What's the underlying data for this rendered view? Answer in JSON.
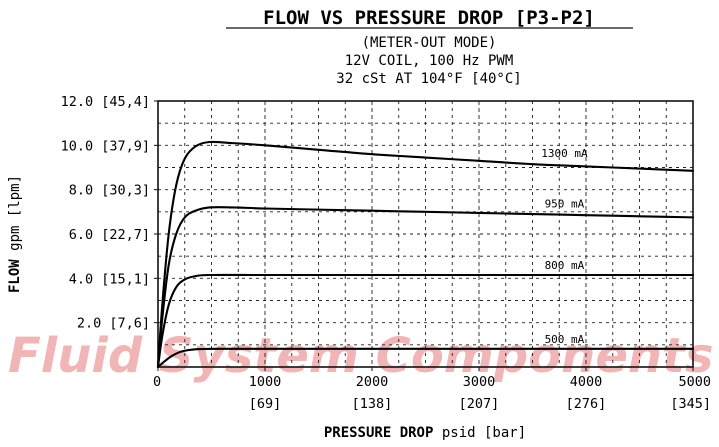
{
  "watermark": {
    "text": "Fluid System Components",
    "color": "#f2b5b5"
  },
  "chart_data": {
    "type": "line",
    "title": "FLOW VS PRESSURE DROP [P3-P2]",
    "subtitle": [
      "(METER-OUT MODE)",
      "12V COIL, 100 Hz PWM",
      "32 cSt AT 104°F [40°C]"
    ],
    "xlabel": {
      "bold": "PRESSURE DROP",
      "rest": " psid [bar]"
    },
    "ylabel": {
      "bold": "FLOW",
      "rest": " gpm [lpm]"
    },
    "xlim": [
      0,
      5000
    ],
    "ylim": [
      0,
      12.0
    ],
    "grid": true,
    "x_ticks": [
      {
        "value": 0,
        "label": "0",
        "sub": ""
      },
      {
        "value": 1000,
        "label": "1000",
        "sub": "[69]"
      },
      {
        "value": 2000,
        "label": "2000",
        "sub": "[138]"
      },
      {
        "value": 3000,
        "label": "3000",
        "sub": "[207]"
      },
      {
        "value": 4000,
        "label": "4000",
        "sub": "[276]"
      },
      {
        "value": 5000,
        "label": "5000",
        "sub": "[345]"
      }
    ],
    "y_ticks": [
      {
        "value": 2.0,
        "label": "2.0 [7,6]"
      },
      {
        "value": 4.0,
        "label": "4.0 [15,1]"
      },
      {
        "value": 6.0,
        "label": "6.0 [22,7]"
      },
      {
        "value": 8.0,
        "label": "8.0 [30,3]"
      },
      {
        "value": 10.0,
        "label": "10.0 [37,9]"
      },
      {
        "value": 12.0,
        "label": "12.0 [45,4]"
      }
    ],
    "series": [
      {
        "name": "1300 mA",
        "label_at": 3350,
        "points": [
          [
            0,
            0
          ],
          [
            40,
            2.8
          ],
          [
            100,
            6.0
          ],
          [
            170,
            8.2
          ],
          [
            250,
            9.4
          ],
          [
            350,
            9.95
          ],
          [
            480,
            10.15
          ],
          [
            700,
            10.1
          ],
          [
            1000,
            10.0
          ],
          [
            1500,
            9.8
          ],
          [
            2000,
            9.6
          ],
          [
            2500,
            9.45
          ],
          [
            3000,
            9.3
          ],
          [
            3500,
            9.15
          ],
          [
            4000,
            9.05
          ],
          [
            4500,
            8.95
          ],
          [
            5000,
            8.85
          ]
        ]
      },
      {
        "name": "950 mA",
        "label_at": 3350,
        "points": [
          [
            0,
            0
          ],
          [
            40,
            2.2
          ],
          [
            100,
            4.6
          ],
          [
            170,
            6.0
          ],
          [
            250,
            6.75
          ],
          [
            350,
            7.05
          ],
          [
            480,
            7.2
          ],
          [
            700,
            7.2
          ],
          [
            1000,
            7.15
          ],
          [
            1500,
            7.1
          ],
          [
            2000,
            7.05
          ],
          [
            2500,
            7.0
          ],
          [
            3000,
            6.95
          ],
          [
            3500,
            6.9
          ],
          [
            4000,
            6.85
          ],
          [
            4500,
            6.8
          ],
          [
            5000,
            6.75
          ]
        ]
      },
      {
        "name": "800 mA",
        "label_at": 3350,
        "points": [
          [
            0,
            0
          ],
          [
            40,
            1.4
          ],
          [
            100,
            2.8
          ],
          [
            170,
            3.6
          ],
          [
            250,
            3.95
          ],
          [
            350,
            4.1
          ],
          [
            480,
            4.15
          ],
          [
            1000,
            4.15
          ],
          [
            2000,
            4.15
          ],
          [
            3000,
            4.15
          ],
          [
            4000,
            4.15
          ],
          [
            5000,
            4.15
          ]
        ]
      },
      {
        "name": "500 mA",
        "label_at": 3350,
        "points": [
          [
            0,
            0
          ],
          [
            60,
            0.25
          ],
          [
            130,
            0.5
          ],
          [
            220,
            0.7
          ],
          [
            350,
            0.8
          ],
          [
            600,
            0.82
          ],
          [
            1000,
            0.82
          ],
          [
            2000,
            0.82
          ],
          [
            3000,
            0.82
          ],
          [
            4000,
            0.82
          ],
          [
            5000,
            0.82
          ]
        ]
      }
    ]
  }
}
